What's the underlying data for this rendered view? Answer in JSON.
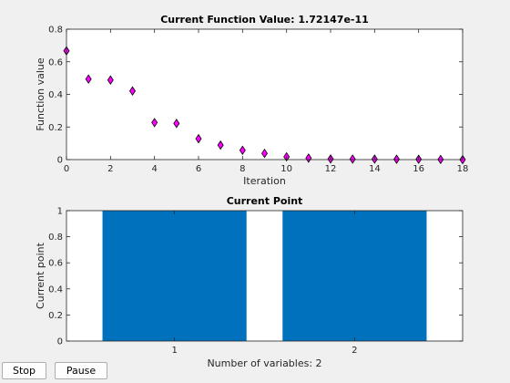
{
  "controls": {
    "stop_label": "Stop",
    "pause_label": "Pause"
  },
  "chart_data": [
    {
      "type": "scatter",
      "title": "Current Function Value: 1.72147e-11",
      "xlabel": "Iteration",
      "ylabel": "Function value",
      "xlim": [
        0,
        18
      ],
      "ylim": [
        0,
        0.8
      ],
      "xticks": [
        0,
        2,
        4,
        6,
        8,
        10,
        12,
        14,
        16,
        18
      ],
      "yticks": [
        0,
        0.2,
        0.4,
        0.6,
        0.8
      ],
      "grid": false,
      "marker": "diamond",
      "marker_color": "#ff00ff",
      "x": [
        0,
        1,
        2,
        3,
        4,
        5,
        6,
        7,
        8,
        9,
        10,
        11,
        12,
        13,
        14,
        15,
        16,
        17,
        18
      ],
      "y": [
        0.667,
        0.494,
        0.488,
        0.421,
        0.227,
        0.222,
        0.128,
        0.089,
        0.057,
        0.038,
        0.017,
        0.009,
        0.004,
        0.003,
        0.003,
        0.002,
        0.002,
        0.001,
        0.0
      ]
    },
    {
      "type": "bar",
      "title": "Current Point",
      "xlabel": "Number of variables: 2",
      "ylabel": "Current point",
      "categories": [
        "1",
        "2"
      ],
      "values": [
        1,
        1
      ],
      "xlim": [
        0.4,
        2.6
      ],
      "ylim": [
        0,
        1
      ],
      "yticks": [
        0,
        0.2,
        0.4,
        0.6,
        0.8,
        1
      ],
      "grid": false,
      "bar_color": "#0072bd"
    }
  ]
}
